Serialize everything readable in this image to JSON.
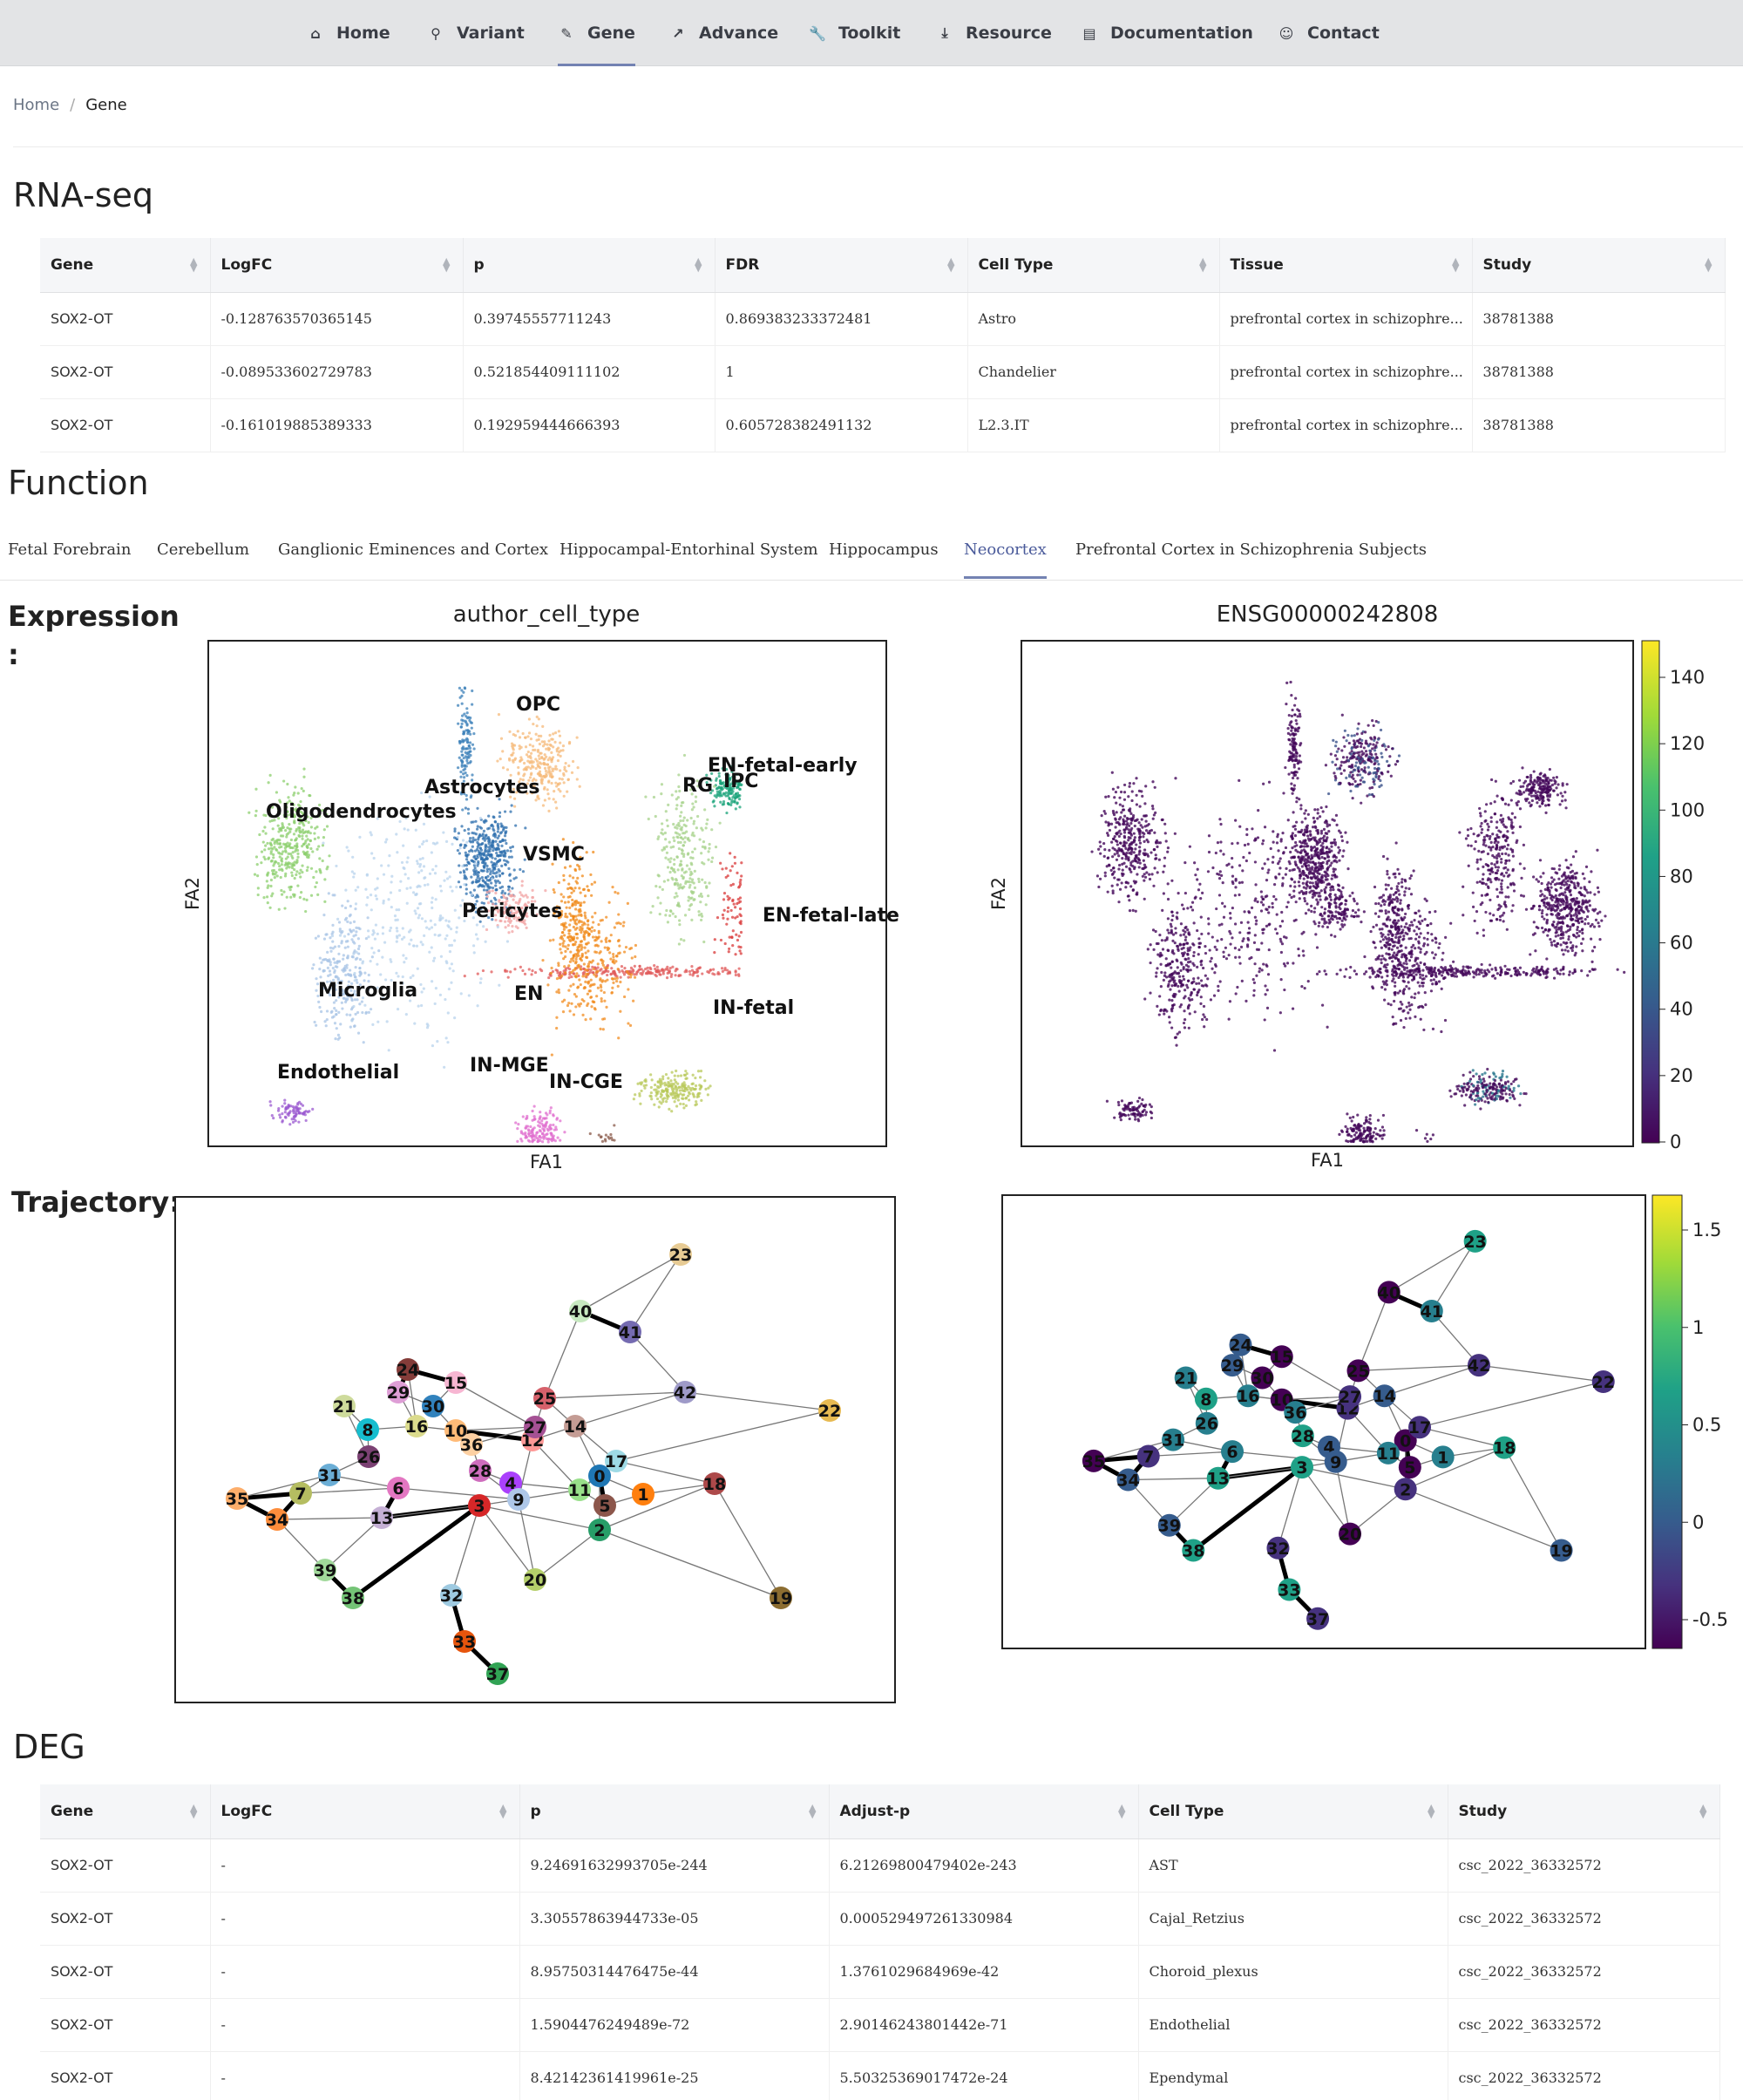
{
  "nav": {
    "items": [
      {
        "label": "Home",
        "icon": "home-icon"
      },
      {
        "label": "Variant",
        "icon": "variant-icon"
      },
      {
        "label": "Gene",
        "icon": "gene-icon"
      },
      {
        "label": "Advance",
        "icon": "chart-icon"
      },
      {
        "label": "Toolkit",
        "icon": "wrench-icon"
      },
      {
        "label": "Resource",
        "icon": "download-icon"
      },
      {
        "label": "Documentation",
        "icon": "document-icon"
      },
      {
        "label": "Contact",
        "icon": "contact-icon"
      }
    ],
    "active": "Gene"
  },
  "breadcrumb": {
    "home": "Home",
    "sep": "/",
    "current": "Gene"
  },
  "rnaseq": {
    "title": "RNA-seq",
    "columns": [
      "Gene",
      "LogFC",
      "p",
      "FDR",
      "Cell Type",
      "Tissue",
      "Study"
    ],
    "rows": [
      [
        "SOX2-OT",
        "-0.128763570365145",
        "0.39745557711243",
        "0.869383233372481",
        "Astro",
        "prefrontal cortex in schizophre...",
        "38781388"
      ],
      [
        "SOX2-OT",
        "-0.089533602729783",
        "0.521854409111102",
        "1",
        "Chandelier",
        "prefrontal cortex in schizophre...",
        "38781388"
      ],
      [
        "SOX2-OT",
        "-0.161019885389333",
        "0.192959444666393",
        "0.605728382491132",
        "L2.3.IT",
        "prefrontal cortex in schizophre...",
        "38781388"
      ]
    ]
  },
  "function": {
    "title": "Function",
    "tabs": [
      "Fetal Forebrain",
      "Cerebellum",
      "Ganglionic Eminences and Cortex",
      "Hippocampal-Entorhinal System",
      "Hippocampus",
      "Neocortex",
      "Prefrontal Cortex in Schizophrenia Subjects"
    ],
    "active_tab": "Neocortex",
    "expression_label": "Expression",
    "expression_colon": ":",
    "trajectory_label": "Trajectory:"
  },
  "chart_data": [
    {
      "type": "scatter",
      "title": "author_cell_type",
      "xlabel": "FA1",
      "ylabel": "FA2",
      "annotations": [
        "OPC",
        "EN-fetal-early",
        "RG",
        "IPC",
        "Astrocytes",
        "Oligodendrocytes",
        "VSMC",
        "Pericytes",
        "EN-fetal-late",
        "Microglia",
        "EN",
        "IN-fetal",
        "Endothelial",
        "IN-MGE",
        "IN-CGE"
      ]
    },
    {
      "type": "scatter",
      "title": "ENSG00000242808",
      "xlabel": "FA1",
      "ylabel": "FA2",
      "colorbar": {
        "ticks": [
          "140",
          "120",
          "100",
          "80",
          "60",
          "40",
          "20",
          "0"
        ],
        "range": [
          0,
          150
        ],
        "cmap": "viridis"
      }
    },
    {
      "type": "scatter",
      "title": "",
      "node_labels": [
        "0",
        "1",
        "2",
        "3",
        "4",
        "5",
        "6",
        "7",
        "8",
        "9",
        "10",
        "11",
        "12",
        "13",
        "14",
        "15",
        "16",
        "17",
        "18",
        "19",
        "20",
        "21",
        "22",
        "23",
        "24",
        "25",
        "26",
        "27",
        "28",
        "29",
        "30",
        "31",
        "32",
        "33",
        "34",
        "35",
        "36",
        "37",
        "38",
        "39",
        "40",
        "41",
        "42"
      ]
    },
    {
      "type": "scatter",
      "title": "",
      "colorbar": {
        "ticks": [
          "1.5",
          "1",
          "0.5",
          "0",
          "-0.5"
        ],
        "range": [
          -0.7,
          1.7
        ],
        "cmap": "viridis"
      }
    }
  ],
  "deg": {
    "title": "DEG",
    "columns": [
      "Gene",
      "LogFC",
      "p",
      "Adjust-p",
      "Cell Type",
      "Study"
    ],
    "rows": [
      [
        "SOX2-OT",
        "-",
        "9.24691632993705e-244",
        "6.21269800479402e-243",
        "AST",
        "csc_2022_36332572"
      ],
      [
        "SOX2-OT",
        "-",
        "3.30557863944733e-05",
        "0.000529497261330984",
        "Cajal_Retzius",
        "csc_2022_36332572"
      ],
      [
        "SOX2-OT",
        "-",
        "8.95750314476475e-44",
        "1.3761029684969e-42",
        "Choroid_plexus",
        "csc_2022_36332572"
      ],
      [
        "SOX2-OT",
        "-",
        "1.5904476249489e-72",
        "2.90146243801442e-71",
        "Endothelial",
        "csc_2022_36332572"
      ],
      [
        "SOX2-OT",
        "-",
        "8.42142361419961e-25",
        "5.50325369017472e-24",
        "Ependymal",
        "csc_2022_36332572"
      ]
    ]
  }
}
